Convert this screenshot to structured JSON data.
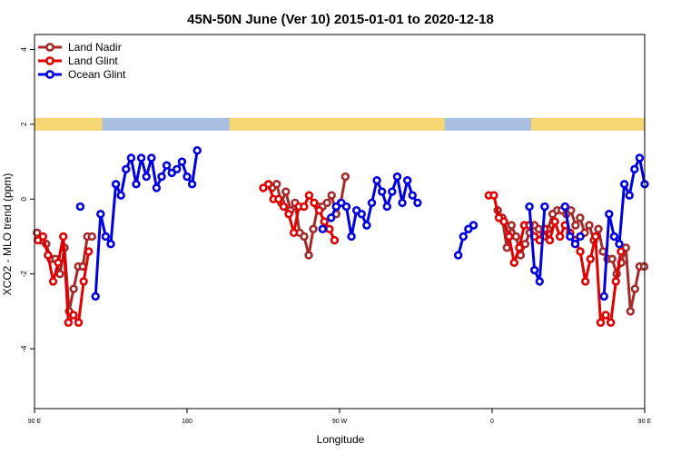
{
  "chart_data": {
    "type": "line",
    "title": "45N-50N June (Ver 10)   2015-01-01 to 2020-12-18",
    "xlabel": "Longitude",
    "ylabel": "XCO2 - MLO trend (ppm)",
    "xlim": [
      90,
      450
    ],
    "ylim": [
      -5.6,
      4.4
    ],
    "x_ticks": [
      {
        "value": 90,
        "label": "90 E"
      },
      {
        "value": 180,
        "label": "180"
      },
      {
        "value": 270,
        "label": "90 W"
      },
      {
        "value": 360,
        "label": "0"
      },
      {
        "value": 450,
        "label": "90 E"
      },
      {
        "value": 540,
        "label": "180"
      }
    ],
    "y_ticks": [
      -4,
      -2,
      0,
      2,
      4
    ],
    "legend_position": "top-left",
    "land_ocean_strip": {
      "y": 2,
      "land_color": "#f7d774",
      "ocean_color": "#a9bfe0",
      "land_segments": [
        [
          90,
          130
        ],
        [
          205,
          332
        ],
        [
          383,
          515
        ]
      ]
    },
    "series": [
      {
        "name": "Land Nadir",
        "color": "#a52a2a",
        "x": [
          91.5,
          94.2,
          96.9,
          99.6,
          102.3,
          105,
          107.7,
          110.4,
          113.1,
          115.8,
          118.5,
          121.2,
          123.9,
          126.6,
          129.3,
          null,
          230.2,
          232.9,
          235.6,
          238.3,
          241,
          243.7,
          246.4,
          249.1,
          251.8,
          254.5,
          257.2,
          259.9,
          262.6,
          265.3,
          268,
          270.7,
          273.4,
          276.1,
          278.8,
          281.5,
          284.2,
          286.9,
          289.6,
          292.3,
          295,
          null,
          363.3,
          366,
          368.7,
          371.4,
          374.1,
          376.8,
          379.5,
          382.2,
          384.9,
          387.6,
          390.3,
          393,
          395.7,
          398.4,
          401.1,
          403.8,
          406.5,
          409.2,
          411.9,
          414.6,
          417.3,
          420,
          422.7,
          425.4,
          428.1,
          430.8,
          433.5,
          436.2,
          438.9,
          441.6,
          444.3,
          447,
          449.7,
          452.4,
          455.1,
          457.8,
          460.5,
          463.2,
          465.9,
          468.6,
          471.3,
          474,
          476.7
        ],
        "y": [
          -0.9,
          -1.1,
          -1.2,
          -1.6,
          -1.6,
          -2,
          -1.3,
          -3,
          -2.4,
          -1.8,
          -1.8,
          -1,
          -1,
          null,
          null,
          null,
          0.3,
          0.4,
          -0.1,
          0.2,
          -0.3,
          -0.1,
          -0.9,
          -1,
          -1.5,
          -0.8,
          -0.2,
          -0.2,
          -0.1,
          0.1,
          -0.4,
          -0.1,
          0.6,
          null,
          null,
          null,
          null,
          null,
          null,
          null,
          null,
          null,
          -0.3,
          -0.5,
          -1.3,
          -0.7,
          -1,
          -1.5,
          -1.2,
          -0.9,
          -0.7,
          -0.8,
          -1,
          -0.8,
          -0.4,
          -0.3,
          -0.3,
          -0.4,
          -0.3,
          -0.7,
          -0.5,
          -0.9,
          -0.7,
          -1.1,
          -0.8,
          -1.4,
          -1.6,
          -1.6,
          -2,
          -1.7,
          -1.3,
          -3,
          -2.4,
          -1.8,
          -1.8,
          -1,
          -1,
          null,
          null,
          null,
          null,
          null,
          null,
          null,
          null
        ],
        "note_on_order": "points read left to right along longitude"
      },
      {
        "name": "Land Glint",
        "color": "#e00000",
        "x": [
          92,
          95,
          98,
          101,
          104,
          107,
          110,
          113,
          116,
          119,
          122,
          125,
          null,
          225,
          228,
          231,
          234,
          237,
          240,
          243,
          246,
          249,
          252,
          255,
          258,
          261,
          264,
          267,
          270,
          null,
          358,
          361,
          364,
          367,
          370,
          373,
          376,
          379,
          382,
          385,
          388,
          391,
          394,
          397,
          400,
          403,
          406,
          409,
          412,
          415,
          418,
          421,
          424,
          427,
          430,
          433,
          436,
          439,
          442,
          445,
          448,
          451,
          454
        ],
        "y": [
          -1.1,
          -1,
          -1.5,
          -2.2,
          -1.7,
          -1,
          -3.3,
          -3.1,
          -3.3,
          -2.2,
          -1.4,
          null,
          null,
          0.3,
          0.4,
          0,
          0,
          -0.2,
          -0.4,
          -0.9,
          -0.2,
          -0.2,
          0.1,
          -0.1,
          -0.3,
          -0.6,
          -0.8,
          -1.1,
          null,
          null,
          0.1,
          0.1,
          -0.5,
          -0.6,
          -1,
          -1.7,
          -1.3,
          -0.7,
          -0.7,
          -1,
          -1.1,
          -0.8,
          -1.1,
          -0.6,
          -1,
          -0.7,
          -0.9,
          -1.1,
          -1.4,
          -2.2,
          -1.6,
          -1,
          -3.3,
          -3.1,
          -3.3,
          -2.2,
          -1.4,
          null,
          null,
          null,
          null,
          null,
          null
        ],
        "note_on_order": "points read left to right along longitude"
      },
      {
        "name": "Ocean Glint",
        "color": "#0000e0",
        "x": [
          117,
          null,
          126,
          129,
          132,
          135,
          138,
          141,
          144,
          147,
          150,
          153,
          156,
          159,
          162,
          165,
          168,
          171,
          174,
          177,
          180,
          183,
          186,
          189,
          192,
          195,
          198,
          201,
          204,
          207,
          210,
          213,
          null,
          260,
          null,
          265,
          268,
          271,
          274,
          277,
          280,
          283,
          286,
          289,
          292,
          295,
          298,
          301,
          304,
          307,
          310,
          313,
          316,
          319,
          322,
          325,
          328,
          331,
          null,
          340,
          343,
          346,
          349,
          null,
          360,
          null,
          382,
          385,
          388,
          391,
          394,
          397,
          400,
          null,
          403,
          406,
          409,
          412,
          null,
          420,
          null,
          426,
          429,
          432,
          435,
          438,
          441,
          444,
          447,
          450
        ],
        "y": [
          -0.2,
          null,
          -2.6,
          -0.4,
          -1,
          -1.2,
          0.4,
          0.1,
          0.8,
          1.1,
          0.4,
          1.1,
          0.6,
          1.1,
          0.3,
          0.6,
          0.9,
          0.7,
          0.8,
          1,
          0.6,
          0.4,
          1.3,
          null,
          null,
          null,
          null,
          null,
          null,
          null,
          null,
          null,
          null,
          -0.8,
          null,
          -0.5,
          -0.2,
          -0.1,
          -0.2,
          -1,
          -0.3,
          -0.4,
          -0.7,
          -0.1,
          0.5,
          0.2,
          -0.2,
          0.2,
          0.6,
          -0.1,
          0.5,
          0.1,
          -0.1,
          null,
          null,
          null,
          null,
          null,
          null,
          -1.5,
          -1,
          -0.8,
          -0.7,
          null,
          null,
          null,
          -0.2,
          -1.9,
          -2.2,
          -0.2,
          null,
          null,
          null,
          null,
          -0.2,
          -1,
          -1.2,
          -1,
          null,
          null,
          null,
          -2.6,
          -0.4,
          -1,
          -1.2,
          0.4,
          0.1,
          0.8,
          1.1,
          0.4
        ],
        "note_on_order": "points read left to right along longitude"
      }
    ]
  }
}
